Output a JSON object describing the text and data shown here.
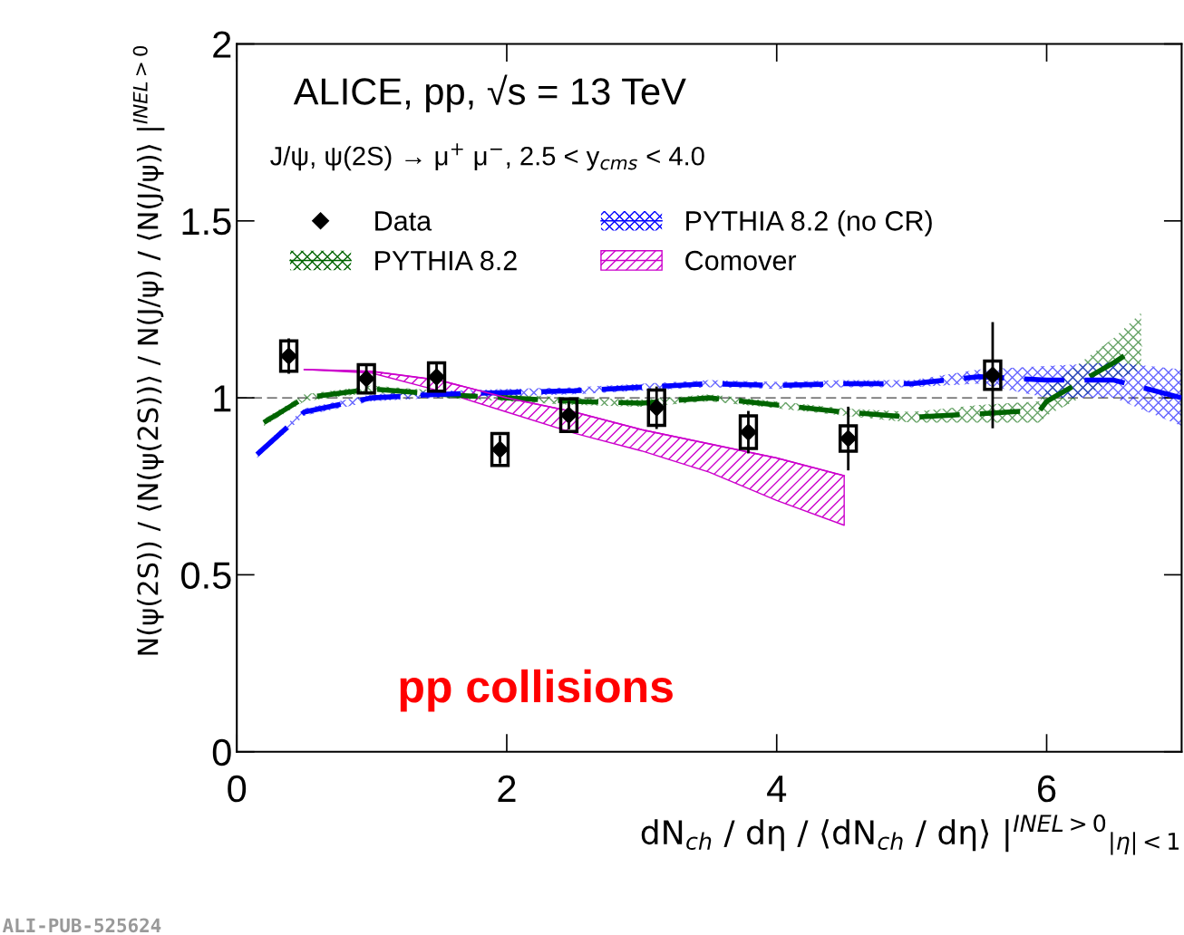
{
  "chart_data": {
    "type": "line",
    "title": "ALICE, pp, √s = 13 TeV",
    "subtitle": "J/ψ, ψ(2S) → μ$^{+}$ μ$^{−}$, 2.5 < y$_{cms}$ < 4.0",
    "xlabel": "dN$_{ch}$ / dη / ⟨dN$_{ch}$ / dη⟩ |$^{INEL>0}$$_{|η|<1}$",
    "ylabel": "N(ψ(2S)) / ⟨N(ψ(2S))⟩ / N(J/ψ) / ⟨N(J/ψ)⟩ |$^{INEL>0}$",
    "xlim": [
      0,
      7
    ],
    "xticks": [
      0,
      2,
      4,
      6
    ],
    "ylim": [
      0,
      2
    ],
    "yticks": [
      0,
      0.5,
      1,
      1.5,
      2
    ],
    "legend": "top left",
    "grid": false,
    "ref_lines": [
      {
        "axis": "y",
        "value": 1,
        "color": "#444444",
        "line_style": "dashed"
      }
    ],
    "annotations": [
      "pp collisions",
      "ALI-PUB-525624"
    ],
    "series": [
      {
        "name": "Data",
        "type": "scatter",
        "marker": "diamond",
        "color": "#000000",
        "x": [
          0.385,
          0.96,
          1.48,
          1.95,
          2.46,
          3.11,
          3.79,
          4.53,
          5.6
        ],
        "values": [
          1.118,
          1.054,
          1.059,
          0.854,
          0.951,
          0.972,
          0.903,
          0.885,
          1.064
        ],
        "errors": [
          0.05,
          0.04,
          0.04,
          0.04,
          0.04,
          0.06,
          0.06,
          0.09,
          0.15
        ]
      },
      {
        "type": "bar",
        "color": "#000000",
        "x": [
          0.385,
          0.96,
          1.48,
          1.95,
          2.46,
          3.11,
          3.79,
          4.53,
          5.6
        ],
        "base": [
          1.075,
          1.014,
          1.019,
          0.809,
          0.905,
          0.922,
          0.857,
          0.849,
          1.024
        ],
        "values": [
          0.086,
          0.08,
          0.08,
          0.09,
          0.092,
          0.1,
          0.092,
          0.072,
          0.08
        ]
      },
      {
        "name": "PYTHIA 8.2",
        "color": "#006400",
        "line_style": "dashed",
        "x": [
          0.2,
          0.5,
          1.0,
          1.5,
          2.0,
          2.5,
          3.0,
          3.5,
          4.0,
          4.5,
          5.0,
          5.5,
          5.95,
          6.0,
          6.5,
          6.7
        ],
        "values": [
          0.93,
          1.0,
          1.025,
          1.01,
          1.0,
          0.99,
          0.985,
          1.0,
          0.98,
          0.96,
          0.945,
          0.955,
          0.965,
          0.99,
          1.1,
          1.15
        ],
        "lower": [
          0.92,
          0.99,
          1.015,
          1.0,
          0.99,
          0.98,
          0.975,
          0.99,
          0.97,
          0.95,
          0.93,
          0.93,
          0.93,
          0.95,
          1.05,
          1.08
        ],
        "upper": [
          0.94,
          1.01,
          1.035,
          1.02,
          1.01,
          1.0,
          0.995,
          1.01,
          0.99,
          0.97,
          0.96,
          0.98,
          0.99,
          1.03,
          1.17,
          1.24
        ]
      },
      {
        "name": "PYTHIA 8.2 (no CR)",
        "color": "#0000ff",
        "line_style": "dashed",
        "x": [
          0.15,
          0.5,
          1.0,
          1.5,
          2.0,
          2.5,
          3.0,
          3.5,
          4.0,
          4.5,
          5.0,
          5.5,
          6.0,
          6.5,
          7.0
        ],
        "values": [
          0.84,
          0.96,
          1.0,
          1.01,
          1.015,
          1.02,
          1.03,
          1.04,
          1.035,
          1.04,
          1.04,
          1.06,
          1.05,
          1.05,
          1.0
        ],
        "lower": [
          0.83,
          0.95,
          0.99,
          1.0,
          1.005,
          1.01,
          1.02,
          1.03,
          1.025,
          1.03,
          1.03,
          1.04,
          1.0,
          1.0,
          0.92
        ],
        "upper": [
          0.85,
          0.97,
          1.01,
          1.02,
          1.025,
          1.03,
          1.04,
          1.05,
          1.045,
          1.05,
          1.05,
          1.08,
          1.09,
          1.1,
          1.08
        ]
      },
      {
        "name": "Comover",
        "color": "#cc00cc",
        "line_style": "solid",
        "x": [
          0.5,
          1.0,
          1.5,
          2.0,
          2.5,
          3.0,
          3.5,
          4.0,
          4.5
        ],
        "values": [
          1.08,
          1.075,
          1.05,
          1.0,
          0.96,
          0.91,
          0.87,
          0.83,
          0.78
        ],
        "lower": [
          1.08,
          1.07,
          1.02,
          0.96,
          0.9,
          0.85,
          0.79,
          0.71,
          0.64
        ],
        "upper": [
          1.08,
          1.075,
          1.05,
          1.0,
          0.96,
          0.91,
          0.87,
          0.83,
          0.78
        ]
      }
    ]
  }
}
